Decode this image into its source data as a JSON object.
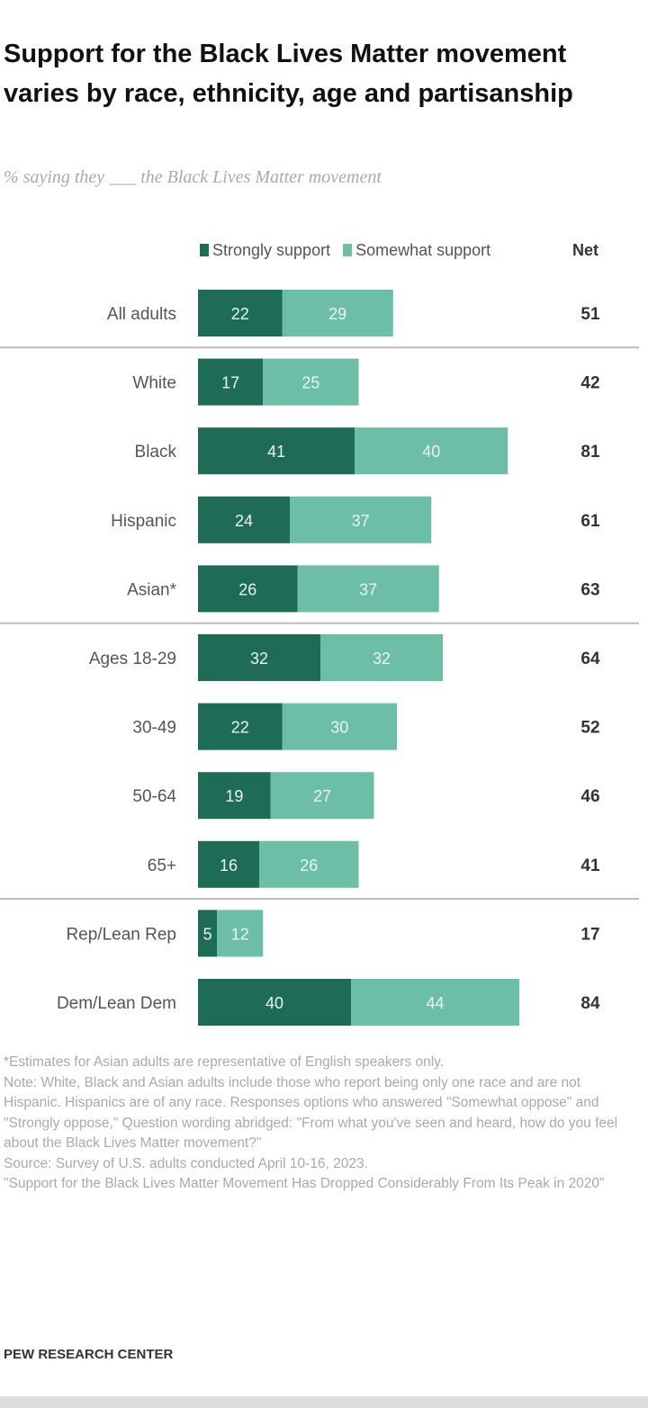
{
  "chart_data": {
    "type": "bar",
    "orientation": "horizontal",
    "stacked": true,
    "title": "Support for the Black Lives Matter movement varies by race, ethnicity, age and partisanship",
    "subtitle": "% saying they ___ the Black Lives Matter movement",
    "categories": [
      "All adults",
      "White",
      "Black",
      "Hispanic",
      "Asian*",
      "Ages 18-29",
      "30-49",
      "50-64",
      "65+",
      "Rep/Lean Rep",
      "Dem/Lean Dem"
    ],
    "groups": [
      [
        0
      ],
      [
        1,
        2,
        3,
        4
      ],
      [
        5,
        6,
        7,
        8
      ],
      [
        9,
        10
      ]
    ],
    "series": [
      {
        "name": "Strongly support",
        "color": "#1e6b56",
        "values": [
          22,
          17,
          41,
          24,
          26,
          32,
          22,
          19,
          16,
          5,
          40
        ]
      },
      {
        "name": "Somewhat support",
        "color": "#6cbfa6",
        "values": [
          29,
          25,
          40,
          37,
          37,
          32,
          30,
          27,
          26,
          12,
          44
        ]
      }
    ],
    "net_label": "Net",
    "net": [
      51,
      42,
      81,
      61,
      63,
      64,
      52,
      46,
      41,
      17,
      84
    ],
    "xlim": [
      0,
      100
    ],
    "grid": false,
    "legend": "top"
  },
  "notes": [
    "*Estimates for Asian adults are representative of English speakers only.",
    "Note: White, Black and Asian adults include those who report being only one race and are not Hispanic. Hispanics are of any race. Responses options who answered \"Somewhat oppose\" and \"Strongly oppose,\" Question wording abridged: \"From what you've seen and heard, how do you feel about the Black Lives Matter movement?\"",
    "Source: Survey of U.S. adults conducted April 10-16, 2023.",
    "\"Support for the Black Lives Matter Movement Has Dropped Considerably From Its Peak in 2020\""
  ],
  "source_org": "PEW RESEARCH CENTER"
}
